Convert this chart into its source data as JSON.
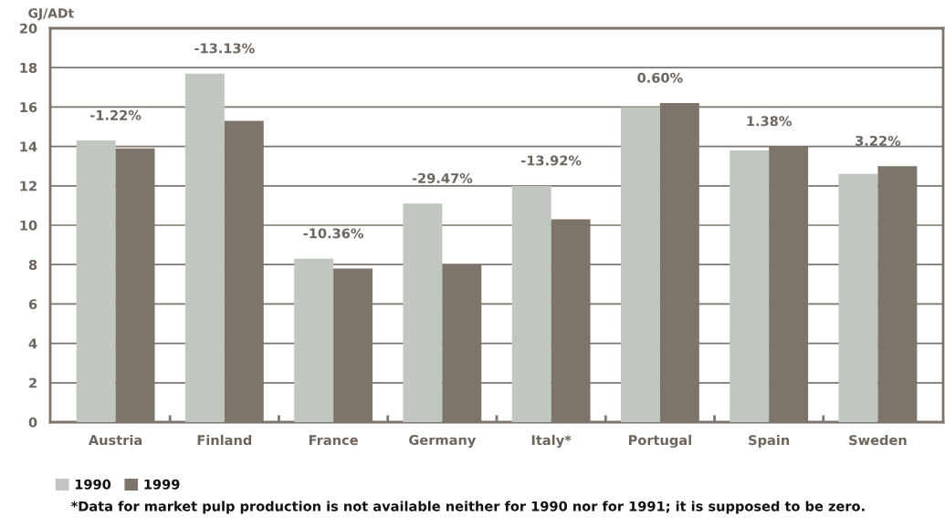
{
  "chart_data": {
    "type": "bar",
    "ylabel": "GJ/ADt",
    "categories": [
      "Austria",
      "Finland",
      "France",
      "Germany",
      "Italy*",
      "Portugal",
      "Spain",
      "Sweden"
    ],
    "series": [
      {
        "name": "1990",
        "color": "#c0c7be",
        "values": [
          14.3,
          17.7,
          8.3,
          11.1,
          12.0,
          16.0,
          13.8,
          12.6
        ]
      },
      {
        "name": "1999",
        "color": "#7d746b",
        "values": [
          13.9,
          15.3,
          7.8,
          8.0,
          10.3,
          16.2,
          14.0,
          13.0
        ]
      }
    ],
    "ylim": [
      0,
      20
    ],
    "yticks": [
      0,
      2,
      4,
      6,
      8,
      10,
      12,
      14,
      16,
      18,
      20
    ],
    "grid": "y",
    "legend": "bottom left",
    "annotations": [
      {
        "text": "-1.22%",
        "x": "Austria",
        "y": 14.3
      },
      {
        "text": "-13.13%",
        "x": "Finland",
        "y": 17.7
      },
      {
        "text": "-10.36%",
        "x": "France",
        "y": 8.3
      },
      {
        "text": "-29.47%",
        "x": "Germany",
        "y": 11.1
      },
      {
        "text": "-13.92%",
        "x": "Italy*",
        "y": 12.0
      },
      {
        "text": "0.60%",
        "x": "Portugal",
        "y": 16.2
      },
      {
        "text": "1.38%",
        "x": "Spain",
        "y": 14.0
      },
      {
        "text": "3.22%",
        "x": "Sweden",
        "y": 13.0
      },
      "*Data for market pulp production is not available neither for 1990 nor for 1991; it is supposed to be zero."
    ]
  }
}
